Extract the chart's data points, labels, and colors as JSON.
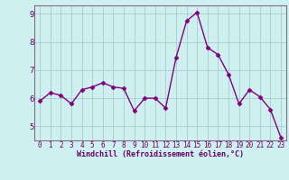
{
  "x": [
    0,
    1,
    2,
    3,
    4,
    5,
    6,
    7,
    8,
    9,
    10,
    11,
    12,
    13,
    14,
    15,
    16,
    17,
    18,
    19,
    20,
    21,
    22,
    23
  ],
  "y": [
    5.9,
    6.2,
    6.1,
    5.8,
    6.3,
    6.4,
    6.55,
    6.4,
    6.35,
    5.55,
    6.0,
    6.0,
    5.65,
    7.45,
    8.75,
    9.05,
    7.8,
    7.55,
    6.85,
    5.8,
    6.3,
    6.05,
    5.6,
    4.6
  ],
  "line_color": "#800080",
  "marker": "D",
  "marker_size": 2.5,
  "linewidth": 1.0,
  "bg_color": "#cff0f0",
  "grid_color": "#aacccc",
  "xlabel": "Windchill (Refroidissement éolien,°C)",
  "xlabel_color": "#660066",
  "tick_color": "#660066",
  "axis_color": "#886688",
  "ylim": [
    4.5,
    9.3
  ],
  "yticks": [
    5,
    6,
    7,
    8,
    9
  ],
  "xticks": [
    0,
    1,
    2,
    3,
    4,
    5,
    6,
    7,
    8,
    9,
    10,
    11,
    12,
    13,
    14,
    15,
    16,
    17,
    18,
    19,
    20,
    21,
    22,
    23
  ],
  "tick_fontsize": 5.5,
  "xlabel_fontsize": 6.0,
  "ytick_fontsize": 6.5
}
